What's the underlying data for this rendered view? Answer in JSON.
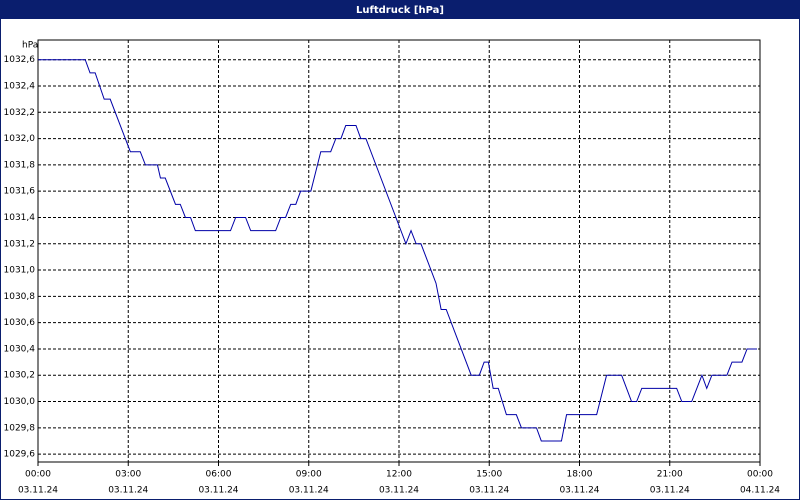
{
  "chart_data": {
    "type": "line",
    "title": "Luftdruck [hPa]",
    "y_unit": "hPa",
    "x": [
      0,
      1.57,
      1.73,
      1.9,
      2.2,
      2.4,
      3.07,
      3.4,
      3.57,
      3.97,
      4.07,
      4.23,
      4.57,
      4.73,
      4.9,
      5.07,
      5.23,
      6.4,
      6.57,
      6.9,
      7.07,
      7.9,
      8.07,
      8.23,
      8.4,
      8.57,
      8.73,
      9.07,
      9.4,
      9.73,
      9.9,
      10.07,
      10.23,
      10.57,
      10.73,
      10.9,
      12.23,
      12.4,
      12.57,
      12.73,
      13.23,
      13.4,
      13.57,
      14.4,
      14.67,
      14.83,
      14.97,
      15.13,
      15.3,
      15.57,
      15.9,
      16.07,
      16.57,
      16.73,
      17.4,
      17.57,
      18.57,
      18.9,
      19.4,
      19.73,
      19.9,
      20.07,
      21.23,
      21.4,
      21.73,
      22.07,
      22.23,
      22.4,
      22.9,
      23.07,
      23.4,
      23.57,
      23.9
    ],
    "series": [
      {
        "name": "Luftdruck",
        "color": "#0000a8",
        "values": [
          1032.6,
          1032.6,
          1032.5,
          1032.5,
          1032.3,
          1032.3,
          1031.9,
          1031.9,
          1031.8,
          1031.8,
          1031.7,
          1031.7,
          1031.5,
          1031.5,
          1031.4,
          1031.4,
          1031.3,
          1031.3,
          1031.4,
          1031.4,
          1031.3,
          1031.3,
          1031.4,
          1031.4,
          1031.5,
          1031.5,
          1031.6,
          1031.6,
          1031.9,
          1031.9,
          1032.0,
          1032.0,
          1032.1,
          1032.1,
          1032.0,
          1032.0,
          1031.2,
          1031.3,
          1031.2,
          1031.2,
          1030.9,
          1030.7,
          1030.7,
          1030.2,
          1030.2,
          1030.3,
          1030.3,
          1030.1,
          1030.1,
          1029.9,
          1029.9,
          1029.8,
          1029.8,
          1029.7,
          1029.7,
          1029.9,
          1029.9,
          1030.2,
          1030.2,
          1030.0,
          1030.0,
          1030.1,
          1030.1,
          1030.0,
          1030.0,
          1030.2,
          1030.1,
          1030.2,
          1030.2,
          1030.3,
          1030.3,
          1030.4,
          1030.4
        ]
      }
    ],
    "xlim": [
      0,
      24
    ],
    "xticks": [
      {
        "value": 0,
        "label": "00:00",
        "date": "03.11.24"
      },
      {
        "value": 3,
        "label": "03:00",
        "date": "03.11.24"
      },
      {
        "value": 6,
        "label": "06:00",
        "date": "03.11.24"
      },
      {
        "value": 9,
        "label": "09:00",
        "date": "03.11.24"
      },
      {
        "value": 12,
        "label": "12:00",
        "date": "03.11.24"
      },
      {
        "value": 15,
        "label": "15:00",
        "date": "03.11.24"
      },
      {
        "value": 18,
        "label": "18:00",
        "date": "03.11.24"
      },
      {
        "value": 21,
        "label": "21:00",
        "date": "03.11.24"
      },
      {
        "value": 24,
        "label": "00:00",
        "date": "04.11.24"
      }
    ],
    "ylim": [
      1029.54,
      1032.75
    ],
    "yticks": [
      {
        "value": 1029.6,
        "label": "1029,6"
      },
      {
        "value": 1029.8,
        "label": "1029,8"
      },
      {
        "value": 1030.0,
        "label": "1030,0"
      },
      {
        "value": 1030.2,
        "label": "1030,2"
      },
      {
        "value": 1030.4,
        "label": "1030,4"
      },
      {
        "value": 1030.6,
        "label": "1030,6"
      },
      {
        "value": 1030.8,
        "label": "1030,8"
      },
      {
        "value": 1031.0,
        "label": "1031,0"
      },
      {
        "value": 1031.2,
        "label": "1031,2"
      },
      {
        "value": 1031.4,
        "label": "1031,4"
      },
      {
        "value": 1031.6,
        "label": "1031,6"
      },
      {
        "value": 1031.8,
        "label": "1031,8"
      },
      {
        "value": 1032.0,
        "label": "1032,0"
      },
      {
        "value": 1032.2,
        "label": "1032,2"
      },
      {
        "value": 1032.4,
        "label": "1032,4"
      },
      {
        "value": 1032.6,
        "label": "1032,6"
      }
    ],
    "grid": true
  }
}
